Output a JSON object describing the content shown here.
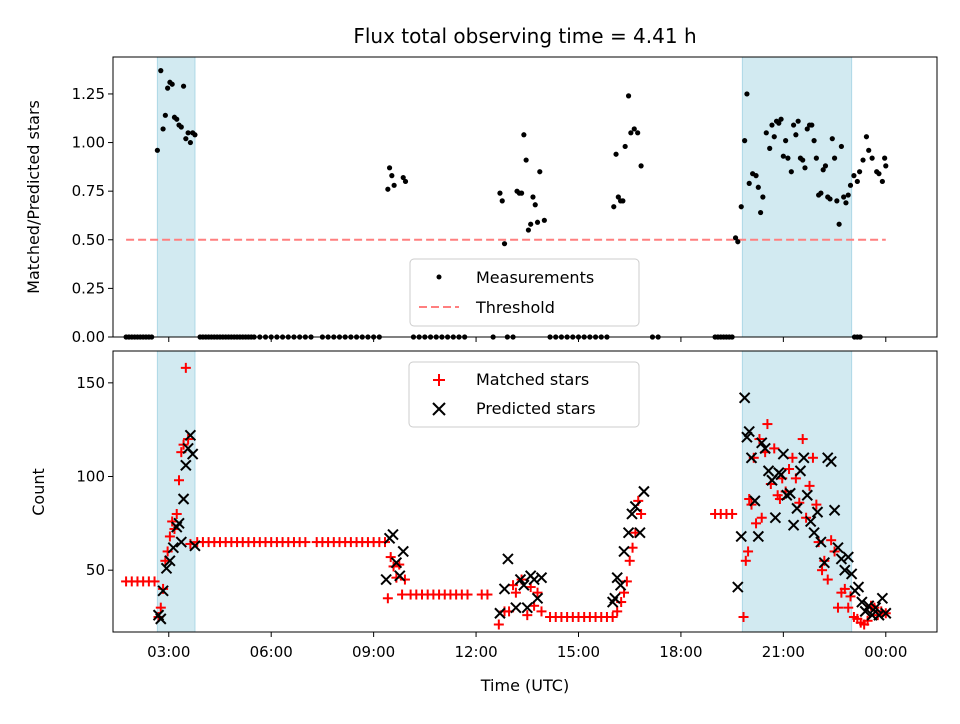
{
  "figure": {
    "title": "Flux total observing time = 4.41 h",
    "xlabel": "Time (UTC)"
  },
  "colors": {
    "shade": "#add8e6",
    "threshold": "#ff7f7f",
    "matched": "#ff0000",
    "predicted": "#000000",
    "measurement": "#000000"
  },
  "chart_data": [
    {
      "type": "scatter",
      "panel": "ratio",
      "ylabel": "Matched/Predicted stars",
      "xlim": [
        "01:22",
        "25:30"
      ],
      "ylim": [
        0,
        1.44
      ],
      "x_ticks": [
        "03:00",
        "06:00",
        "09:00",
        "12:00",
        "15:00",
        "18:00",
        "21:00",
        "00:00"
      ],
      "y_ticks": [
        "0.00",
        "0.25",
        "0.50",
        "0.75",
        "1.00",
        "1.25"
      ],
      "legend": {
        "placement": "lower center",
        "entries": [
          "Measurements",
          "Threshold"
        ]
      },
      "shaded_intervals": [
        [
          "02:40",
          "03:46"
        ],
        [
          "19:48",
          "23:00"
        ]
      ],
      "threshold": {
        "name": "Threshold",
        "value": 0.5,
        "x_range": [
          "01:45",
          "24:00"
        ]
      },
      "series": [
        {
          "name": "Measurements",
          "x": [
            "02:40",
            "02:46",
            "02:50",
            "02:54",
            "02:58",
            "03:02",
            "03:06",
            "03:10",
            "03:14",
            "03:18",
            "03:22",
            "03:26",
            "03:30",
            "03:34",
            "03:38",
            "03:42",
            "03:46",
            "09:25",
            "09:28",
            "09:32",
            "09:36",
            "09:52",
            "09:56",
            "12:42",
            "12:46",
            "12:50",
            "13:12",
            "13:16",
            "13:20",
            "13:24",
            "13:28",
            "13:32",
            "13:36",
            "13:40",
            "13:44",
            "13:48",
            "13:52",
            "14:00",
            "16:02",
            "16:06",
            "16:10",
            "16:14",
            "16:18",
            "16:22",
            "16:28",
            "16:32",
            "16:38",
            "16:44",
            "16:50",
            "19:36",
            "19:40",
            "19:46",
            "19:52",
            "19:56",
            "20:00",
            "20:06",
            "20:12",
            "20:16",
            "20:20",
            "20:24",
            "20:30",
            "20:36",
            "20:40",
            "20:44",
            "20:48",
            "20:52",
            "20:56",
            "21:00",
            "21:04",
            "21:08",
            "21:14",
            "21:18",
            "21:22",
            "21:26",
            "21:30",
            "21:34",
            "21:38",
            "21:42",
            "21:46",
            "21:50",
            "21:54",
            "21:58",
            "22:02",
            "22:06",
            "22:10",
            "22:14",
            "22:18",
            "22:22",
            "22:26",
            "22:30",
            "22:34",
            "22:38",
            "22:42",
            "22:46",
            "22:50",
            "22:54",
            "22:58",
            "23:04",
            "23:10",
            "23:14",
            "23:20",
            "23:26",
            "23:30",
            "23:36",
            "23:44",
            "23:48",
            "23:54",
            "23:58",
            "24:00"
          ],
          "y": [
            0.96,
            1.37,
            1.07,
            1.14,
            1.28,
            1.31,
            1.3,
            1.13,
            1.12,
            1.09,
            1.08,
            1.29,
            1.02,
            1.05,
            1.0,
            1.05,
            1.04,
            0.76,
            0.87,
            0.83,
            0.78,
            0.82,
            0.8,
            0.74,
            0.7,
            0.48,
            0.75,
            0.74,
            0.74,
            1.04,
            0.91,
            0.55,
            0.58,
            0.72,
            0.68,
            0.59,
            0.85,
            0.6,
            0.67,
            0.94,
            0.72,
            0.7,
            0.7,
            0.98,
            1.24,
            1.05,
            1.07,
            1.05,
            0.88,
            0.51,
            0.49,
            0.67,
            1.01,
            1.25,
            0.79,
            0.84,
            0.83,
            0.77,
            0.64,
            0.72,
            1.05,
            0.97,
            1.09,
            1.03,
            1.11,
            1.1,
            1.12,
            0.93,
            1.01,
            0.92,
            0.85,
            1.09,
            1.04,
            1.11,
            0.92,
            0.91,
            0.87,
            1.07,
            1.09,
            1.09,
            1.01,
            0.92,
            0.73,
            0.74,
            0.86,
            0.88,
            0.72,
            0.71,
            1.02,
            0.92,
            0.7,
            0.58,
            0.98,
            0.72,
            0.69,
            0.73,
            0.78,
            0.83,
            0.8,
            0.85,
            0.91,
            1.03,
            0.96,
            0.92,
            0.85,
            0.84,
            0.8,
            0.92,
            0.88
          ],
          "zeros": [
            "01:45",
            "01:50",
            "01:55",
            "02:00",
            "02:05",
            "02:10",
            "02:15",
            "02:20",
            "02:25",
            "02:30",
            "03:55",
            "04:00",
            "04:05",
            "04:10",
            "04:15",
            "04:20",
            "04:25",
            "04:30",
            "04:35",
            "04:40",
            "04:45",
            "04:50",
            "04:55",
            "05:00",
            "05:05",
            "05:10",
            "05:15",
            "05:20",
            "05:25",
            "05:30",
            "05:40",
            "05:50",
            "06:00",
            "06:10",
            "06:20",
            "06:30",
            "06:40",
            "06:50",
            "07:00",
            "07:10",
            "07:30",
            "07:40",
            "07:50",
            "08:00",
            "08:10",
            "08:20",
            "08:30",
            "08:40",
            "08:50",
            "09:00",
            "09:10",
            "10:10",
            "10:20",
            "10:30",
            "10:40",
            "10:50",
            "11:00",
            "11:10",
            "11:20",
            "11:30",
            "11:40",
            "12:30",
            "12:55",
            "13:05",
            "14:10",
            "14:20",
            "14:30",
            "14:40",
            "14:50",
            "15:00",
            "15:10",
            "15:20",
            "15:30",
            "15:40",
            "15:50",
            "17:10",
            "17:20",
            "19:00",
            "19:05",
            "19:10",
            "19:15",
            "19:20",
            "19:25",
            "19:30",
            "23:05",
            "23:10",
            "23:15"
          ]
        }
      ]
    },
    {
      "type": "scatter",
      "panel": "counts",
      "ylabel": "Count",
      "xlim": [
        "01:22",
        "25:30"
      ],
      "ylim": [
        17,
        167
      ],
      "x_ticks": [
        "03:00",
        "06:00",
        "09:00",
        "12:00",
        "15:00",
        "18:00",
        "21:00",
        "00:00"
      ],
      "y_ticks": [
        "50",
        "100",
        "150"
      ],
      "legend": {
        "placement": "upper center",
        "entries": [
          "Matched stars",
          "Predicted stars"
        ]
      },
      "shaded_intervals": [
        [
          "02:40",
          "03:46"
        ],
        [
          "19:48",
          "23:00"
        ]
      ],
      "series": [
        {
          "name": "Matched stars",
          "x": [
            "01:45",
            "01:55",
            "02:05",
            "02:15",
            "02:25",
            "02:35",
            "02:42",
            "02:46",
            "02:50",
            "02:54",
            "02:58",
            "03:02",
            "03:06",
            "03:10",
            "03:14",
            "03:18",
            "03:22",
            "03:26",
            "03:30",
            "03:34",
            "03:38",
            "03:50",
            "04:00",
            "04:10",
            "04:20",
            "04:30",
            "04:40",
            "04:50",
            "05:00",
            "05:10",
            "05:20",
            "05:30",
            "05:40",
            "05:50",
            "06:00",
            "06:10",
            "06:20",
            "06:30",
            "06:40",
            "06:50",
            "07:00",
            "07:20",
            "07:30",
            "07:40",
            "07:50",
            "08:00",
            "08:10",
            "08:20",
            "08:30",
            "08:40",
            "08:50",
            "09:00",
            "09:10",
            "09:20",
            "09:25",
            "09:30",
            "09:35",
            "09:40",
            "09:45",
            "09:50",
            "09:55",
            "10:05",
            "10:15",
            "10:25",
            "10:35",
            "10:45",
            "10:55",
            "11:05",
            "11:15",
            "11:25",
            "11:35",
            "11:45",
            "12:10",
            "12:20",
            "12:40",
            "12:50",
            "12:58",
            "13:05",
            "13:10",
            "13:20",
            "13:30",
            "13:36",
            "13:42",
            "13:48",
            "13:55",
            "14:10",
            "14:20",
            "14:30",
            "14:40",
            "14:50",
            "15:00",
            "15:10",
            "15:20",
            "15:30",
            "15:40",
            "15:50",
            "16:00",
            "16:08",
            "16:15",
            "16:20",
            "16:25",
            "16:30",
            "16:35",
            "16:40",
            "16:45",
            "16:50",
            "19:00",
            "19:10",
            "19:20",
            "19:30",
            "19:50",
            "19:54",
            "19:58",
            "20:00",
            "20:04",
            "20:08",
            "20:12",
            "20:18",
            "20:22",
            "20:28",
            "20:32",
            "20:38",
            "20:44",
            "20:50",
            "20:54",
            "20:58",
            "21:04",
            "21:10",
            "21:16",
            "21:22",
            "21:28",
            "21:34",
            "21:40",
            "21:46",
            "21:52",
            "21:58",
            "22:02",
            "22:08",
            "22:12",
            "22:18",
            "22:24",
            "22:30",
            "22:36",
            "22:42",
            "22:48",
            "22:54",
            "22:58",
            "23:04",
            "23:10",
            "23:16",
            "23:22",
            "23:28",
            "23:34",
            "23:40",
            "23:46",
            "23:52",
            "24:00"
          ],
          "y": [
            44,
            44,
            44,
            44,
            44,
            44,
            25,
            30,
            40,
            55,
            60,
            68,
            76,
            72,
            80,
            98,
            113,
            117,
            158,
            120,
            64,
            65,
            65,
            65,
            65,
            65,
            65,
            65,
            65,
            65,
            65,
            65,
            65,
            65,
            65,
            65,
            65,
            65,
            65,
            65,
            65,
            65,
            65,
            65,
            65,
            65,
            65,
            65,
            65,
            65,
            65,
            65,
            65,
            65,
            35,
            57,
            52,
            46,
            53,
            37,
            45,
            37,
            37,
            37,
            37,
            37,
            37,
            37,
            37,
            37,
            37,
            37,
            37,
            37,
            21,
            28,
            28,
            42,
            38,
            45,
            26,
            41,
            31,
            38,
            28,
            25,
            25,
            25,
            25,
            25,
            25,
            25,
            25,
            25,
            25,
            25,
            25,
            28,
            33,
            38,
            44,
            55,
            62,
            70,
            87,
            80,
            80,
            80,
            80,
            80,
            25,
            55,
            60,
            88,
            85,
            110,
            75,
            120,
            78,
            113,
            128,
            96,
            115,
            90,
            88,
            99,
            92,
            104,
            110,
            99,
            86,
            120,
            78,
            95,
            110,
            85,
            65,
            50,
            55,
            45,
            66,
            60,
            30,
            38,
            40,
            30,
            36,
            25,
            24,
            22,
            21,
            23,
            31,
            30,
            26,
            28,
            27
          ],
          "marker": "plus"
        },
        {
          "name": "Predicted stars",
          "x": [
            "02:42",
            "02:46",
            "02:50",
            "02:56",
            "03:02",
            "03:08",
            "03:14",
            "03:18",
            "03:22",
            "03:26",
            "03:30",
            "03:34",
            "03:38",
            "03:42",
            "03:46",
            "09:22",
            "09:28",
            "09:34",
            "09:40",
            "09:46",
            "09:52",
            "12:42",
            "12:50",
            "12:56",
            "13:10",
            "13:18",
            "13:24",
            "13:30",
            "13:36",
            "13:42",
            "13:48",
            "13:55",
            "16:00",
            "16:04",
            "16:08",
            "16:14",
            "16:20",
            "16:28",
            "16:34",
            "16:40",
            "16:48",
            "16:55",
            "19:40",
            "19:46",
            "19:52",
            "19:56",
            "20:00",
            "20:04",
            "20:10",
            "20:16",
            "20:22",
            "20:28",
            "20:34",
            "20:40",
            "20:46",
            "20:52",
            "20:56",
            "21:00",
            "21:06",
            "21:12",
            "21:18",
            "21:24",
            "21:30",
            "21:36",
            "21:42",
            "21:48",
            "21:54",
            "22:00",
            "22:06",
            "22:12",
            "22:18",
            "22:24",
            "22:30",
            "22:36",
            "22:42",
            "22:48",
            "22:54",
            "23:00",
            "23:06",
            "23:12",
            "23:18",
            "23:24",
            "23:30",
            "23:36",
            "23:42",
            "23:48",
            "23:54",
            "24:00"
          ],
          "y": [
            26,
            24,
            39,
            51,
            55,
            62,
            73,
            75,
            65,
            88,
            106,
            115,
            122,
            112,
            63,
            45,
            67,
            69,
            54,
            47,
            60,
            27,
            40,
            56,
            30,
            45,
            42,
            30,
            47,
            45,
            35,
            46,
            33,
            35,
            46,
            42,
            60,
            70,
            80,
            84,
            70,
            92,
            41,
            68,
            142,
            121,
            124,
            110,
            87,
            68,
            118,
            115,
            103,
            98,
            78,
            102,
            101,
            112,
            90,
            91,
            74,
            83,
            103,
            110,
            90,
            76,
            70,
            81,
            65,
            54,
            110,
            108,
            82,
            62,
            56,
            50,
            57,
            48,
            39,
            41,
            33,
            28,
            31,
            26,
            30,
            26,
            35,
            27
          ],
          "marker": "x"
        }
      ]
    }
  ]
}
